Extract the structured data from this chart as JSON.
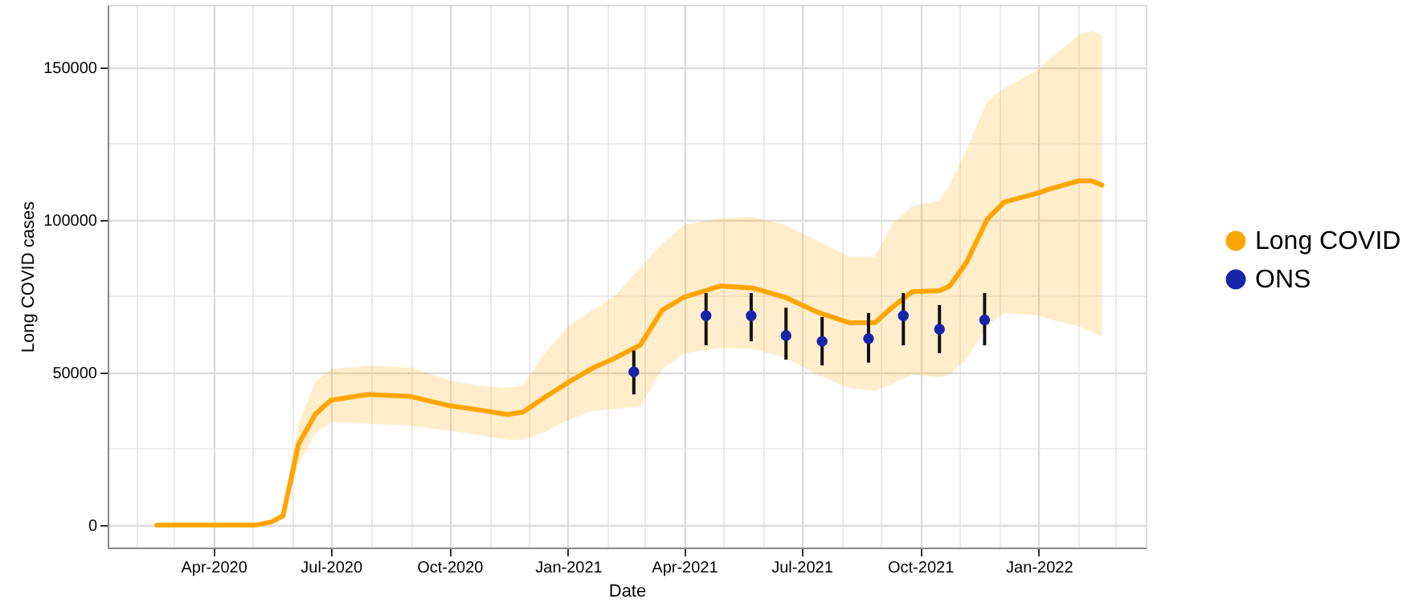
{
  "chart_data": {
    "type": "line",
    "xlabel": "Date",
    "ylabel": "Long COVID cases",
    "xlim": [
      "2020-01-10",
      "2022-03-25"
    ],
    "ylim": [
      -7400,
      170500
    ],
    "yticks": [
      0,
      {
        "value": 25000,
        "label": null
      },
      50000,
      {
        "value": 75000,
        "label": null
      },
      100000,
      {
        "value": 125000,
        "label": null
      },
      150000
    ],
    "xticks": [
      {
        "value": "2020-02",
        "label": null
      },
      {
        "value": "2020-03",
        "label": null
      },
      {
        "value": "2020-04",
        "label": "Apr-2020"
      },
      {
        "value": "2020-05",
        "label": null
      },
      {
        "value": "2020-06",
        "label": null
      },
      {
        "value": "2020-07",
        "label": "Jul-2020"
      },
      {
        "value": "2020-08",
        "label": null
      },
      {
        "value": "2020-09",
        "label": null
      },
      {
        "value": "2020-10",
        "label": "Oct-2020"
      },
      {
        "value": "2020-11",
        "label": null
      },
      {
        "value": "2020-12",
        "label": null
      },
      {
        "value": "2021-01",
        "label": "Jan-2021"
      },
      {
        "value": "2021-02",
        "label": null
      },
      {
        "value": "2021-03",
        "label": null
      },
      {
        "value": "2021-04",
        "label": "Apr-2021"
      },
      {
        "value": "2021-05",
        "label": null
      },
      {
        "value": "2021-06",
        "label": null
      },
      {
        "value": "2021-07",
        "label": "Jul-2021"
      },
      {
        "value": "2021-08",
        "label": null
      },
      {
        "value": "2021-09",
        "label": null
      },
      {
        "value": "2021-10",
        "label": "Oct-2021"
      },
      {
        "value": "2021-11",
        "label": null
      },
      {
        "value": "2021-12",
        "label": null
      },
      {
        "value": "2022-01",
        "label": "Jan-2022"
      },
      {
        "value": "2022-02",
        "label": null
      },
      {
        "value": "2022-03",
        "label": null
      }
    ],
    "grid": true,
    "legend": "right",
    "series": [
      {
        "name": "Long COVID",
        "color": "#ffa500",
        "x": [
          "2020-02-17",
          "2020-05-04",
          "2020-05-16",
          "2020-05-25",
          "2020-06-06",
          "2020-06-19",
          "2020-07-01",
          "2020-07-30",
          "2020-09-01",
          "2020-10-01",
          "2020-10-21",
          "2020-11-15",
          "2020-11-27",
          "2020-12-14",
          "2021-01-01",
          "2021-01-20",
          "2021-02-06",
          "2021-02-26",
          "2021-03-15",
          "2021-04-01",
          "2021-04-29",
          "2021-05-24",
          "2021-06-18",
          "2021-07-13",
          "2021-08-07",
          "2021-08-27",
          "2021-09-09",
          "2021-09-25",
          "2021-10-16",
          "2021-10-24",
          "2021-11-06",
          "2021-11-22",
          "2021-12-05",
          "2022-01-01",
          "2022-01-07",
          "2022-02-01",
          "2022-02-11",
          "2022-02-19"
        ],
        "values": [
          0,
          0,
          1000,
          3000,
          26500,
          36300,
          40900,
          42800,
          42100,
          39100,
          37900,
          36200,
          37000,
          41900,
          46700,
          51400,
          54600,
          59000,
          70400,
          74700,
          78300,
          77700,
          74700,
          69800,
          66300,
          66300,
          71200,
          76500,
          76800,
          78300,
          86100,
          100200,
          105800,
          108900,
          109800,
          112800,
          112800,
          111400
        ],
        "lower": [
          0,
          0,
          500,
          2000,
          20000,
          30000,
          33700,
          33200,
          32500,
          30900,
          29600,
          27900,
          27900,
          30400,
          34400,
          37400,
          38000,
          38800,
          51000,
          56300,
          58000,
          57700,
          54900,
          49300,
          44900,
          44000,
          46100,
          49300,
          48400,
          49300,
          54500,
          65100,
          69500,
          68600,
          67700,
          65100,
          63300,
          61600
        ],
        "upper": [
          0,
          0,
          1500,
          5000,
          33000,
          47000,
          51000,
          52300,
          51600,
          47500,
          45800,
          44900,
          45800,
          56300,
          65100,
          70400,
          75000,
          84400,
          92300,
          98400,
          100500,
          101000,
          98400,
          93200,
          87900,
          87900,
          98400,
          104500,
          106300,
          111600,
          123000,
          138700,
          143200,
          149300,
          151900,
          160700,
          161900,
          160700
        ]
      },
      {
        "name": "ONS",
        "type": "scatter",
        "color": "#1525a8",
        "marker": "circle",
        "x": [
          "2021-02-21",
          "2021-04-18",
          "2021-05-23",
          "2021-06-19",
          "2021-07-17",
          "2021-08-22",
          "2021-09-18",
          "2021-10-16",
          "2021-11-20"
        ],
        "values": [
          50200,
          68600,
          68600,
          62100,
          60200,
          61100,
          68600,
          64200,
          67200
        ],
        "errors": [
          [
            42800,
            57200
          ],
          [
            58900,
            76000
          ],
          [
            60200,
            76000
          ],
          [
            54200,
            71200
          ],
          [
            52300,
            68200
          ],
          [
            53200,
            69500
          ],
          [
            58900,
            76000
          ],
          [
            56300,
            72100
          ],
          [
            58900,
            76000
          ]
        ]
      }
    ]
  }
}
